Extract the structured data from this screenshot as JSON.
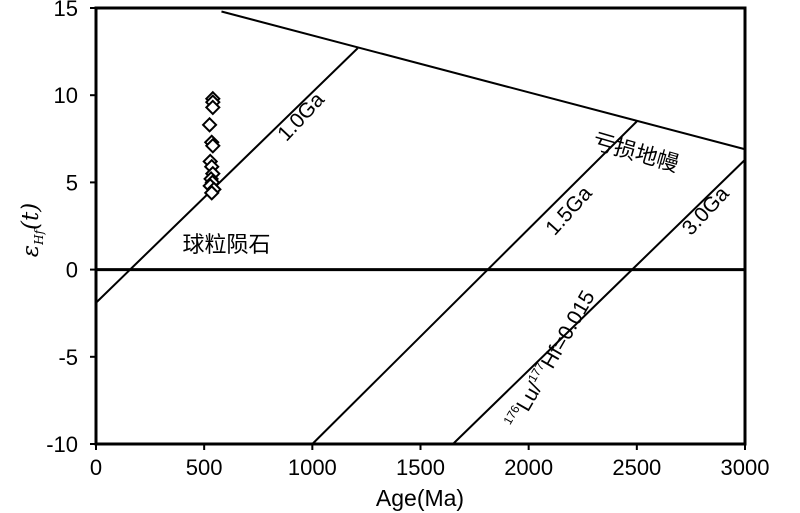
{
  "chart_data": {
    "type": "scatter",
    "xlabel": "Age(Ma)",
    "ylabel_symbol": "ε",
    "ylabel_sub": "Hf",
    "ylabel_tail": "(t)",
    "xlim": [
      0,
      3000
    ],
    "ylim": [
      -10,
      15
    ],
    "x_ticks": [
      0,
      500,
      1000,
      1500,
      2000,
      2500,
      3000
    ],
    "y_ticks": [
      15,
      10,
      5,
      0,
      -5,
      -10
    ],
    "points": [
      {
        "x": 540,
        "y": 9.8
      },
      {
        "x": 540,
        "y": 9.6
      },
      {
        "x": 540,
        "y": 9.3
      },
      {
        "x": 525,
        "y": 8.3
      },
      {
        "x": 535,
        "y": 7.3
      },
      {
        "x": 540,
        "y": 7.1
      },
      {
        "x": 528,
        "y": 6.2
      },
      {
        "x": 535,
        "y": 5.9
      },
      {
        "x": 540,
        "y": 5.5
      },
      {
        "x": 532,
        "y": 5.2
      },
      {
        "x": 538,
        "y": 5.0
      },
      {
        "x": 528,
        "y": 4.8
      },
      {
        "x": 545,
        "y": 4.6
      },
      {
        "x": 535,
        "y": 4.4
      }
    ],
    "reference_lines": [
      {
        "name": "depleted-mantle",
        "points": [
          [
            580,
            14.8
          ],
          [
            3000,
            6.9
          ]
        ]
      },
      {
        "name": "chur",
        "points": [
          [
            0,
            0
          ],
          [
            3000,
            0
          ]
        ]
      },
      {
        "name": "1.0Ga",
        "points": [
          [
            0,
            -1.9
          ],
          [
            1210,
            12.7
          ]
        ]
      },
      {
        "name": "1.5Ga",
        "points": [
          [
            1000,
            -10
          ],
          [
            2500,
            8.5
          ]
        ]
      },
      {
        "name": "3.0Ga",
        "points": [
          [
            1650,
            -10
          ],
          [
            3000,
            6.3
          ]
        ]
      }
    ],
    "annotations": [
      {
        "text": "1.0Ga",
        "x": 880,
        "y": 7.3,
        "angle": -47
      },
      {
        "text": "1.5Ga",
        "x": 2120,
        "y": 1.9,
        "angle": -48
      },
      {
        "text": "3.0Ga",
        "x": 2750,
        "y": 1.9,
        "angle": -47
      },
      {
        "text": "亏损地幔",
        "x": 2290,
        "y": 7.0,
        "angle": 16
      },
      {
        "text": "球粒陨石",
        "x": 400,
        "y": 1.0,
        "angle": 0
      },
      {
        "text_sup1": "176",
        "text1": "Lu/",
        "text_sup2": "177",
        "text2": "Hf=0.015",
        "x": 1950,
        "y": -9.2,
        "angle": -60
      }
    ]
  }
}
